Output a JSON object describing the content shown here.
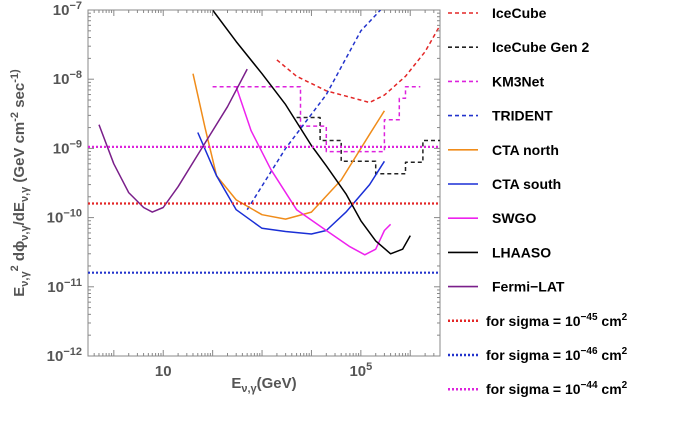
{
  "chart_data": {
    "type": "line",
    "x_scale": "log",
    "y_scale": "log",
    "xlim": [
      0.3,
      4000000
    ],
    "ylim": [
      1e-12,
      1e-07
    ],
    "xlabel": "E_{ν,γ}(GeV)",
    "ylabel": "E_{ν,γ}^2 dϕ_{ν,γ}/dE_{ν,γ} (GeV cm^-2 sec^-1)",
    "x_ticks": [
      {
        "value": 10,
        "base": "10",
        "exp": ""
      },
      {
        "value": 100000,
        "base": "10",
        "exp": "5"
      }
    ],
    "y_ticks": [
      {
        "value": 1e-07,
        "base": "10",
        "exp": "−7"
      },
      {
        "value": 1e-08,
        "base": "10",
        "exp": "−8"
      },
      {
        "value": 1e-09,
        "base": "10",
        "exp": "−9"
      },
      {
        "value": 1e-10,
        "base": "10",
        "exp": "−10"
      },
      {
        "value": 1e-11,
        "base": "10",
        "exp": "−11"
      },
      {
        "value": 1e-12,
        "base": "10",
        "exp": "−12"
      }
    ],
    "series": [
      {
        "name": "IceCube",
        "color": "#e32626",
        "dash": "dashed",
        "points": [
          [
            2000,
            1.9e-08
          ],
          [
            5000,
            1.1e-08
          ],
          [
            20000,
            6.8e-09
          ],
          [
            150000,
            4.6e-09
          ],
          [
            300000,
            5.9e-09
          ],
          [
            800000,
            1.1e-08
          ],
          [
            2000000,
            2.5e-08
          ],
          [
            4000000,
            6e-08
          ]
        ]
      },
      {
        "name": "IceCube Gen 2",
        "color": "#222222",
        "dash": "dashed",
        "points": [
          [
            5000,
            2.8e-09
          ],
          [
            15000,
            2.8e-09
          ],
          [
            15000,
            1.3e-09
          ],
          [
            40000,
            1.3e-09
          ],
          [
            40000,
            6.5e-10
          ],
          [
            200000,
            6.5e-10
          ],
          [
            200000,
            4.3e-10
          ],
          [
            800000,
            4.3e-10
          ],
          [
            800000,
            6.3e-10
          ],
          [
            1800000,
            6.3e-10
          ],
          [
            1800000,
            1.3e-09
          ],
          [
            4000000,
            1.3e-09
          ]
        ]
      },
      {
        "name": "KM3Net",
        "color": "#dd22dd",
        "dash": "dashed",
        "points": [
          [
            100,
            7.8e-09
          ],
          [
            6000,
            7.8e-09
          ],
          [
            6000,
            2.1e-09
          ],
          [
            20000,
            2.1e-09
          ],
          [
            20000,
            9e-10
          ],
          [
            300000,
            9e-10
          ],
          [
            300000,
            2.6e-09
          ],
          [
            600000,
            2.6e-09
          ],
          [
            600000,
            5.3e-09
          ],
          [
            800000,
            5.3e-09
          ],
          [
            800000,
            7.8e-09
          ],
          [
            1600000,
            7.8e-09
          ]
        ]
      },
      {
        "name": "TRIDENT",
        "color": "#2233cc",
        "dash": "dashed",
        "points": [
          [
            500,
            1.3e-10
          ],
          [
            3000,
            1e-09
          ],
          [
            20000,
            6e-09
          ],
          [
            100000,
            5e-08
          ],
          [
            250000,
            1e-07
          ]
        ]
      },
      {
        "name": "CTA north",
        "color": "#f08c1a",
        "dash": "solid",
        "points": [
          [
            40,
            1.2e-08
          ],
          [
            70,
            2e-09
          ],
          [
            120,
            4e-10
          ],
          [
            300,
            1.8e-10
          ],
          [
            1000,
            1.1e-10
          ],
          [
            3000,
            9.5e-11
          ],
          [
            10000,
            1.2e-10
          ],
          [
            40000,
            3.5e-10
          ],
          [
            150000,
            1.6e-09
          ],
          [
            300000,
            3.5e-09
          ]
        ]
      },
      {
        "name": "CTA south",
        "color": "#1a2fd6",
        "dash": "solid",
        "points": [
          [
            50,
            1.7e-09
          ],
          [
            120,
            4e-10
          ],
          [
            300,
            1.3e-10
          ],
          [
            1000,
            7e-11
          ],
          [
            3000,
            6.3e-11
          ],
          [
            10000,
            5.8e-11
          ],
          [
            20000,
            6.5e-11
          ],
          [
            50000,
            1.2e-10
          ],
          [
            150000,
            3e-10
          ],
          [
            300000,
            6.5e-10
          ]
        ]
      },
      {
        "name": "SWGO",
        "color": "#ee22ee",
        "dash": "solid",
        "points": [
          [
            300,
            7.8e-09
          ],
          [
            600,
            1.8e-09
          ],
          [
            1500,
            5e-10
          ],
          [
            5000,
            1.3e-10
          ],
          [
            20000,
            6.5e-11
          ],
          [
            60000,
            3.8e-11
          ],
          [
            120000,
            2.9e-11
          ],
          [
            200000,
            3.5e-11
          ],
          [
            300000,
            6.5e-11
          ],
          [
            400000,
            8e-11
          ]
        ]
      },
      {
        "name": "LHAASO",
        "color": "#000000",
        "dash": "solid",
        "points": [
          [
            100,
            1e-07
          ],
          [
            300,
            3.5e-08
          ],
          [
            1000,
            1.2e-08
          ],
          [
            3000,
            4.3e-09
          ],
          [
            10000,
            1.1e-09
          ],
          [
            20000,
            5.6e-10
          ],
          [
            50000,
            2.2e-10
          ],
          [
            100000,
            9e-11
          ],
          [
            200000,
            4.6e-11
          ],
          [
            400000,
            3e-11
          ],
          [
            700000,
            3.5e-11
          ],
          [
            1000000,
            5.5e-11
          ]
        ]
      },
      {
        "name": "Fermi−LAT",
        "color": "#7a1f8a",
        "dash": "solid",
        "points": [
          [
            0.5,
            2.2e-09
          ],
          [
            1,
            6e-10
          ],
          [
            2,
            2.3e-10
          ],
          [
            4,
            1.4e-10
          ],
          [
            6,
            1.2e-10
          ],
          [
            10,
            1.4e-10
          ],
          [
            20,
            2.8e-10
          ],
          [
            60,
            1e-09
          ],
          [
            200,
            4e-09
          ],
          [
            500,
            1.4e-08
          ]
        ]
      },
      {
        "name": "for sigma = 10^{−45} cm^2",
        "color": "#e32626",
        "dash": "dotted",
        "points": [
          [
            0.3,
            1.6e-10
          ],
          [
            4000000,
            1.6e-10
          ]
        ]
      },
      {
        "name": "for sigma = 10^{−46} cm^2",
        "color": "#2233cc",
        "dash": "dotted",
        "points": [
          [
            0.3,
            1.6e-11
          ],
          [
            4000000,
            1.6e-11
          ]
        ]
      },
      {
        "name": "for sigma = 10^{−44} cm^2",
        "color": "#dd22dd",
        "dash": "dotted",
        "points": [
          [
            0.3,
            1.05e-09
          ],
          [
            4000000,
            1.05e-09
          ]
        ]
      }
    ],
    "legend_placement": "right"
  }
}
